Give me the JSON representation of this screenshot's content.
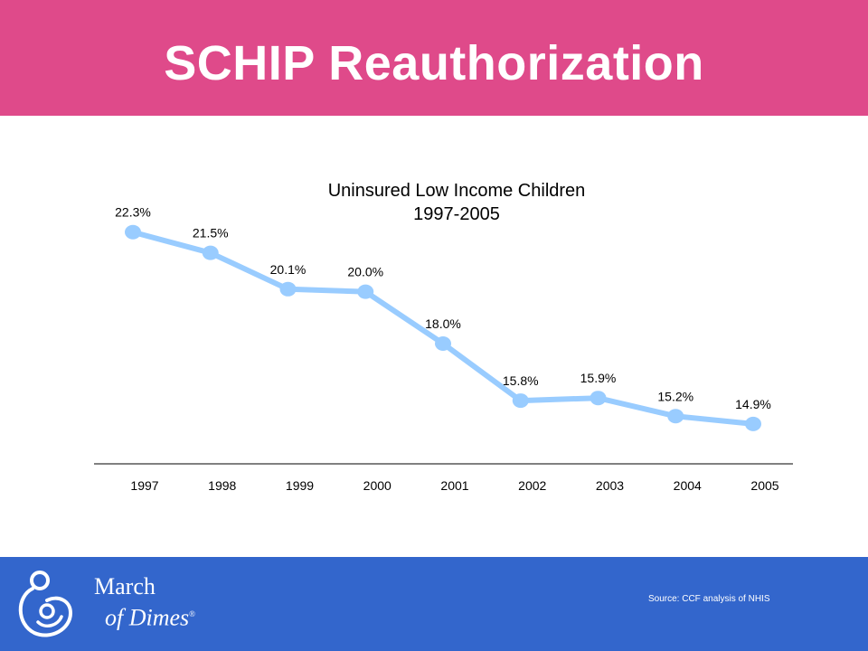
{
  "slide": {
    "title": "SCHIP Reauthorization"
  },
  "chart_data": {
    "type": "line",
    "title": "Uninsured Low Income Children",
    "subtitle": "1997-2005",
    "categories": [
      "1997",
      "1998",
      "1999",
      "2000",
      "2001",
      "2002",
      "2003",
      "2004",
      "2005"
    ],
    "values": [
      22.3,
      21.5,
      20.1,
      20.0,
      18.0,
      15.8,
      15.9,
      15.2,
      14.9
    ],
    "data_labels": [
      "22.3%",
      "21.5%",
      "20.1%",
      "20.0%",
      "18.0%",
      "15.8%",
      "15.9%",
      "15.2%",
      "14.9%"
    ],
    "unit": "%",
    "ylim": [
      12,
      24
    ],
    "y_axis_visible": false,
    "grid": false,
    "line_color": "#99ccff",
    "legend": "none"
  },
  "footer": {
    "logo_line1": "March",
    "logo_line2": "of Dimes",
    "logo_reg": "®",
    "source": "Source: CCF analysis of NHIS"
  },
  "colors": {
    "header_bg": "#df4a8a",
    "footer_bg": "#3366cc",
    "title_text": "#ffffff"
  }
}
